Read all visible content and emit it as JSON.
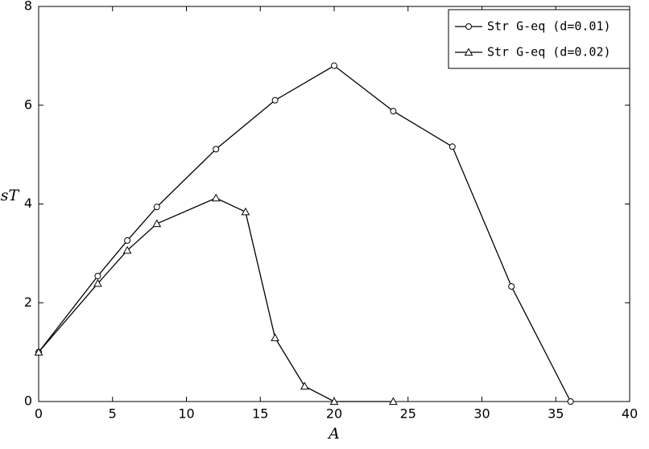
{
  "chart_data": {
    "type": "line",
    "xlabel": "A",
    "ylabel": "sT",
    "xlim": [
      0,
      40
    ],
    "xticks": [
      0,
      5,
      10,
      15,
      20,
      25,
      30,
      35,
      40
    ],
    "ylim": [
      0,
      8
    ],
    "yticks": [
      0,
      2,
      4,
      6,
      8
    ],
    "grid": false,
    "legend": "upper right",
    "series": [
      {
        "name": "Str G-eq (d=0.01)",
        "color": "#000000",
        "marker": "circle",
        "x": [
          0,
          4,
          6,
          8,
          12,
          16,
          20,
          24,
          28,
          32,
          36
        ],
        "values": [
          1.0,
          2.54,
          3.26,
          3.94,
          5.11,
          6.1,
          6.8,
          5.88,
          5.16,
          2.33,
          0
        ]
      },
      {
        "name": "Str G-eq (d=0.02)",
        "color": "#000000",
        "marker": "triangle",
        "x": [
          0,
          4,
          6,
          8,
          12,
          14,
          16,
          18,
          20,
          24
        ],
        "values": [
          1.0,
          2.39,
          3.06,
          3.6,
          4.12,
          3.84,
          1.29,
          0.31,
          0,
          0
        ]
      }
    ]
  }
}
